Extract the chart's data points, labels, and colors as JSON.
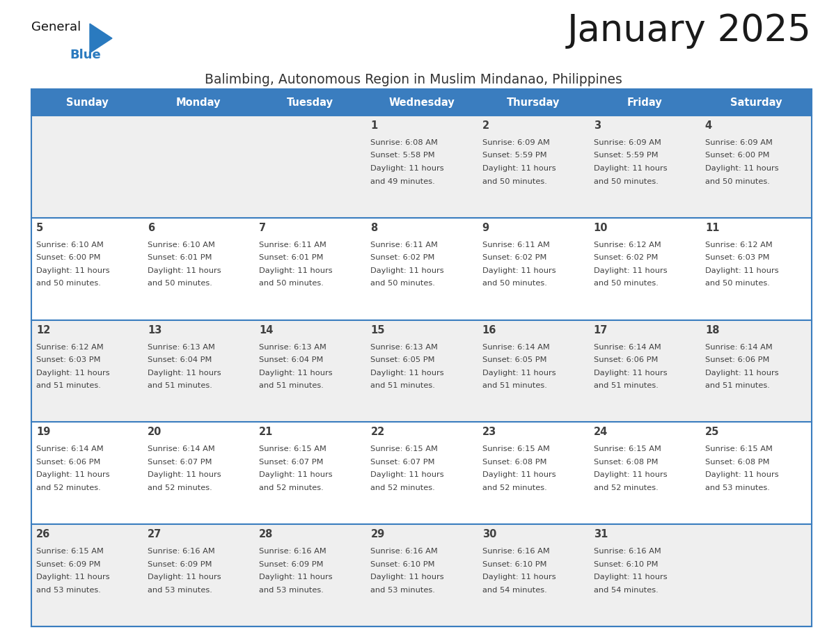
{
  "title": "January 2025",
  "subtitle": "Balimbing, Autonomous Region in Muslim Mindanao, Philippines",
  "header_bg_color": "#3a7dbf",
  "header_text_color": "#ffffff",
  "weekdays": [
    "Sunday",
    "Monday",
    "Tuesday",
    "Wednesday",
    "Thursday",
    "Friday",
    "Saturday"
  ],
  "row_bg_even": "#efefef",
  "row_bg_odd": "#ffffff",
  "divider_color": "#3a7dbf",
  "text_color": "#404040",
  "title_color": "#1a1a1a",
  "subtitle_color": "#333333",
  "logo_general_color": "#111111",
  "logo_blue_color": "#2a7abf",
  "calendar": [
    [
      {
        "day": null,
        "sunrise": null,
        "sunset": null,
        "daylight": null
      },
      {
        "day": null,
        "sunrise": null,
        "sunset": null,
        "daylight": null
      },
      {
        "day": null,
        "sunrise": null,
        "sunset": null,
        "daylight": null
      },
      {
        "day": 1,
        "sunrise": "6:08 AM",
        "sunset": "5:58 PM",
        "daylight": "11 hours and 49 minutes."
      },
      {
        "day": 2,
        "sunrise": "6:09 AM",
        "sunset": "5:59 PM",
        "daylight": "11 hours and 50 minutes."
      },
      {
        "day": 3,
        "sunrise": "6:09 AM",
        "sunset": "5:59 PM",
        "daylight": "11 hours and 50 minutes."
      },
      {
        "day": 4,
        "sunrise": "6:09 AM",
        "sunset": "6:00 PM",
        "daylight": "11 hours and 50 minutes."
      }
    ],
    [
      {
        "day": 5,
        "sunrise": "6:10 AM",
        "sunset": "6:00 PM",
        "daylight": "11 hours and 50 minutes."
      },
      {
        "day": 6,
        "sunrise": "6:10 AM",
        "sunset": "6:01 PM",
        "daylight": "11 hours and 50 minutes."
      },
      {
        "day": 7,
        "sunrise": "6:11 AM",
        "sunset": "6:01 PM",
        "daylight": "11 hours and 50 minutes."
      },
      {
        "day": 8,
        "sunrise": "6:11 AM",
        "sunset": "6:02 PM",
        "daylight": "11 hours and 50 minutes."
      },
      {
        "day": 9,
        "sunrise": "6:11 AM",
        "sunset": "6:02 PM",
        "daylight": "11 hours and 50 minutes."
      },
      {
        "day": 10,
        "sunrise": "6:12 AM",
        "sunset": "6:02 PM",
        "daylight": "11 hours and 50 minutes."
      },
      {
        "day": 11,
        "sunrise": "6:12 AM",
        "sunset": "6:03 PM",
        "daylight": "11 hours and 50 minutes."
      }
    ],
    [
      {
        "day": 12,
        "sunrise": "6:12 AM",
        "sunset": "6:03 PM",
        "daylight": "11 hours and 51 minutes."
      },
      {
        "day": 13,
        "sunrise": "6:13 AM",
        "sunset": "6:04 PM",
        "daylight": "11 hours and 51 minutes."
      },
      {
        "day": 14,
        "sunrise": "6:13 AM",
        "sunset": "6:04 PM",
        "daylight": "11 hours and 51 minutes."
      },
      {
        "day": 15,
        "sunrise": "6:13 AM",
        "sunset": "6:05 PM",
        "daylight": "11 hours and 51 minutes."
      },
      {
        "day": 16,
        "sunrise": "6:14 AM",
        "sunset": "6:05 PM",
        "daylight": "11 hours and 51 minutes."
      },
      {
        "day": 17,
        "sunrise": "6:14 AM",
        "sunset": "6:06 PM",
        "daylight": "11 hours and 51 minutes."
      },
      {
        "day": 18,
        "sunrise": "6:14 AM",
        "sunset": "6:06 PM",
        "daylight": "11 hours and 51 minutes."
      }
    ],
    [
      {
        "day": 19,
        "sunrise": "6:14 AM",
        "sunset": "6:06 PM",
        "daylight": "11 hours and 52 minutes."
      },
      {
        "day": 20,
        "sunrise": "6:14 AM",
        "sunset": "6:07 PM",
        "daylight": "11 hours and 52 minutes."
      },
      {
        "day": 21,
        "sunrise": "6:15 AM",
        "sunset": "6:07 PM",
        "daylight": "11 hours and 52 minutes."
      },
      {
        "day": 22,
        "sunrise": "6:15 AM",
        "sunset": "6:07 PM",
        "daylight": "11 hours and 52 minutes."
      },
      {
        "day": 23,
        "sunrise": "6:15 AM",
        "sunset": "6:08 PM",
        "daylight": "11 hours and 52 minutes."
      },
      {
        "day": 24,
        "sunrise": "6:15 AM",
        "sunset": "6:08 PM",
        "daylight": "11 hours and 52 minutes."
      },
      {
        "day": 25,
        "sunrise": "6:15 AM",
        "sunset": "6:08 PM",
        "daylight": "11 hours and 53 minutes."
      }
    ],
    [
      {
        "day": 26,
        "sunrise": "6:15 AM",
        "sunset": "6:09 PM",
        "daylight": "11 hours and 53 minutes."
      },
      {
        "day": 27,
        "sunrise": "6:16 AM",
        "sunset": "6:09 PM",
        "daylight": "11 hours and 53 minutes."
      },
      {
        "day": 28,
        "sunrise": "6:16 AM",
        "sunset": "6:09 PM",
        "daylight": "11 hours and 53 minutes."
      },
      {
        "day": 29,
        "sunrise": "6:16 AM",
        "sunset": "6:10 PM",
        "daylight": "11 hours and 53 minutes."
      },
      {
        "day": 30,
        "sunrise": "6:16 AM",
        "sunset": "6:10 PM",
        "daylight": "11 hours and 54 minutes."
      },
      {
        "day": 31,
        "sunrise": "6:16 AM",
        "sunset": "6:10 PM",
        "daylight": "11 hours and 54 minutes."
      },
      {
        "day": null,
        "sunrise": null,
        "sunset": null,
        "daylight": null
      }
    ]
  ]
}
